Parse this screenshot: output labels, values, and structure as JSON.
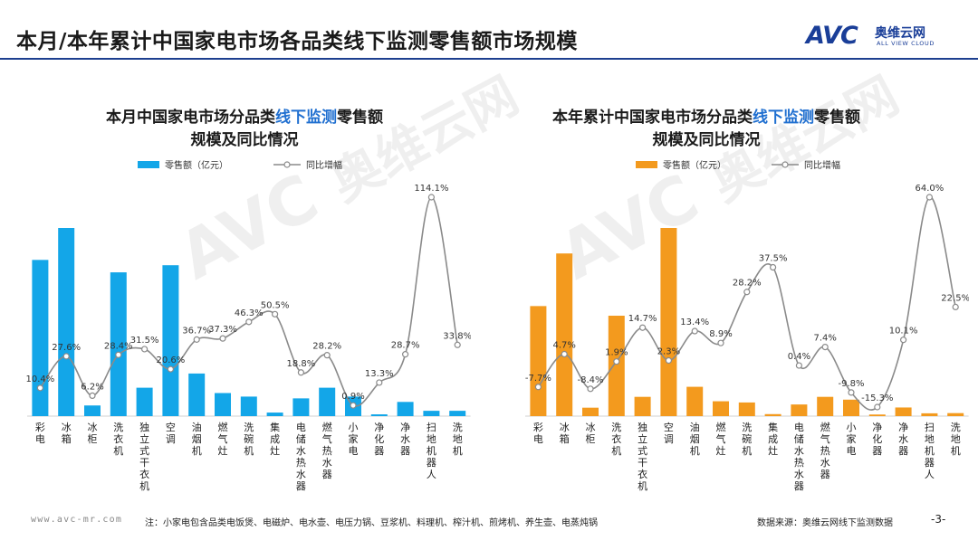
{
  "header": {
    "title": "本月/本年累计中国家电市场各品类线下监测零售额市场规模",
    "logo_mark": "AVC",
    "logo_name": "奥维云网",
    "logo_sub": "ALL VIEW CLOUD"
  },
  "watermark": {
    "mark": "AVC",
    "name": "奥维云网",
    "sub": "ALL VIEW CLOUD"
  },
  "charts": [
    {
      "title_pre": "本月中国家电市场分品类",
      "title_hl": "线下监测",
      "title_post": "零售额",
      "title_line2": "规模及同比情况"
    },
    {
      "title_pre": "本年累计中国家电市场分品类",
      "title_hl": "线下监测",
      "title_post": "零售额",
      "title_line2": "规模及同比情况"
    }
  ],
  "chart_data": [
    {
      "type": "bar",
      "categories": [
        "彩电",
        "冰箱",
        "冰柜",
        "洗衣机",
        "独立式干衣机",
        "空调",
        "油烟机",
        "燃气灶",
        "洗碗机",
        "集成灶",
        "电储水热水器",
        "燃气热水器",
        "小家电",
        "净化器",
        "净水器",
        "扫地机器人",
        "洗地机"
      ],
      "bar_color": "#13a6e8",
      "series": [
        {
          "name": "零售额（亿元）",
          "type": "bar",
          "values": [
            88,
            106,
            6,
            81,
            16,
            85,
            24,
            13,
            11,
            2,
            10,
            16,
            11,
            1,
            8,
            3,
            3
          ]
        },
        {
          "name": "同比增幅",
          "type": "line",
          "values": [
            10.4,
            27.6,
            6.2,
            28.4,
            31.5,
            20.6,
            36.7,
            37.3,
            46.3,
            50.5,
            18.8,
            28.2,
            0.9,
            13.3,
            28.7,
            114.1,
            33.8
          ],
          "labels": [
            "10.4%",
            "27.6%",
            "6.2%",
            "28.4%",
            "31.5%",
            "20.6%",
            "36.7%",
            "37.3%",
            "46.3%",
            "50.5%",
            "18.8%",
            "28.2%",
            "0.9%",
            "13.3%",
            "28.7%",
            "114.1%",
            "33.8%"
          ]
        }
      ]
    },
    {
      "type": "bar",
      "categories": [
        "彩电",
        "冰箱",
        "冰柜",
        "洗衣机",
        "独立式干衣机",
        "空调",
        "油烟机",
        "燃气灶",
        "洗碗机",
        "集成灶",
        "电储水热水器",
        "燃气热水器",
        "小家电",
        "净化器",
        "净水器",
        "扫地机器人",
        "洗地机"
      ],
      "bar_color": "#f39a1e",
      "series": [
        {
          "name": "零售额（亿元）",
          "type": "bar",
          "values": [
            548,
            810,
            42,
            500,
            96,
            937,
            146,
            74,
            68,
            10,
            58,
            96,
            82,
            8,
            43,
            14,
            15
          ]
        },
        {
          "name": "同比增幅",
          "type": "line",
          "values": [
            -7.7,
            4.7,
            -8.4,
            1.9,
            14.7,
            2.3,
            13.4,
            8.9,
            28.2,
            37.5,
            0.4,
            7.4,
            -9.8,
            -15.3,
            10.1,
            64.0,
            22.5
          ],
          "labels": [
            "-7.7%",
            "4.7%",
            "-8.4%",
            "1.9%",
            "14.7%",
            "2.3%",
            "13.4%",
            "8.9%",
            "28.2%",
            "37.5%",
            "0.4%",
            "7.4%",
            "-9.8%",
            "-15.3%",
            "10.1%",
            "64.0%",
            "22.5%"
          ]
        }
      ]
    }
  ],
  "footer": {
    "url": "www.avc-mr.com",
    "note": "注：小家电包含品类电饭煲、电磁炉、电水壶、电压力锅、豆浆机、料理机、榨汁机、煎烤机、养生壶、电蒸炖锅",
    "source": "数据来源：奥维云网线下监测数据",
    "page": "-3-"
  }
}
